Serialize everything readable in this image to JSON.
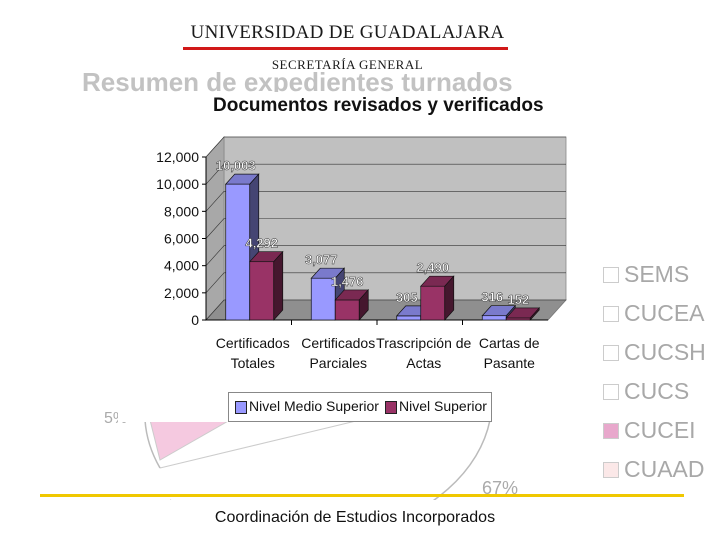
{
  "header": {
    "title": "UNIVERSIDAD DE GUADALAJARA",
    "subtitle": "SECRETARÍA GENERAL"
  },
  "background_slide": {
    "title": "Resumen de expedientes turnados",
    "pie_percent_left": "5%",
    "pie_percent_bottom": "67%",
    "legend": [
      {
        "label": "SEMS",
        "color": "#ffffff"
      },
      {
        "label": "CUCEA",
        "color": "#ffffff"
      },
      {
        "label": "CUCSH",
        "color": "#ffffff"
      },
      {
        "label": "CUCS",
        "color": "#ffffff"
      },
      {
        "label": "CUCEI",
        "color": "#e8a8cc"
      },
      {
        "label": "CUAAD",
        "color": "#fbe8e8"
      }
    ]
  },
  "chart_data": {
    "type": "bar",
    "title": "Documentos revisados y verificados",
    "categories": [
      "Certificados Totales",
      "Certificados Parciales",
      "Trascripción de Actas",
      "Cartas de Pasante"
    ],
    "series": [
      {
        "name": "Nivel Medio Superior",
        "color": "#9999ff",
        "values": [
          10003,
          3077,
          305,
          316
        ],
        "labels": [
          "10,003",
          "3,077",
          "305",
          "316"
        ]
      },
      {
        "name": "Nivel Superior",
        "color": "#993366",
        "values": [
          4292,
          1476,
          2490,
          152
        ],
        "labels": [
          "4,292",
          "1,476",
          "2,490",
          "152"
        ]
      }
    ],
    "yticks": [
      "0",
      "2,000",
      "4,000",
      "6,000",
      "8,000",
      "10,000",
      "12,000"
    ],
    "ylim": [
      0,
      12000
    ],
    "grid": true,
    "legend_position": "bottom",
    "chart_type_detail": "3D clustered column"
  },
  "footer": {
    "text": "Coordinación de Estudios Incorporados"
  }
}
